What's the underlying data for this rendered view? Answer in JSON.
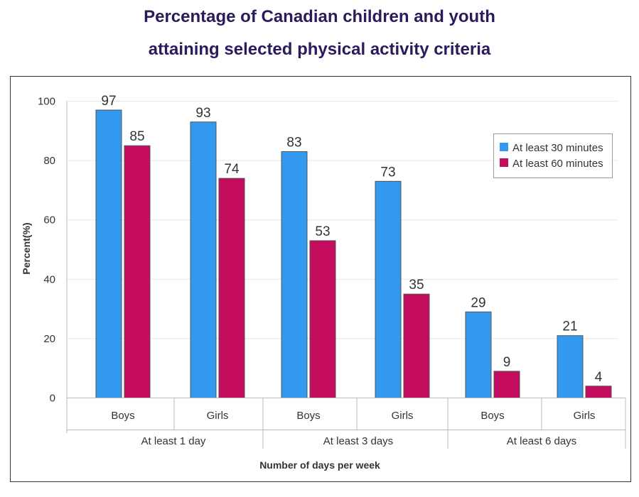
{
  "chart_data": {
    "type": "bar",
    "title": "Percentage of Canadian children and youth",
    "subtitle": "attaining selected physical activity criteria",
    "xlabel": "Number of days per week",
    "ylabel": "Percent(%)",
    "ylim": [
      0,
      100
    ],
    "yticks": [
      "0",
      "20",
      "40",
      "60",
      "80",
      "100"
    ],
    "grid": true,
    "legend_position": "top-right",
    "groups": [
      "At least 1 day",
      "At least 3 days",
      "At least 6 days"
    ],
    "categories": [
      "Boys",
      "Girls",
      "Boys",
      "Girls",
      "Boys",
      "Girls"
    ],
    "series": [
      {
        "name": "At least 30 minutes",
        "color": "#3399ee",
        "values": [
          97,
          93,
          83,
          73,
          29,
          21
        ]
      },
      {
        "name": "At least 60 minutes",
        "color": "#c40c5e",
        "values": [
          85,
          74,
          53,
          35,
          9,
          4
        ]
      }
    ]
  }
}
